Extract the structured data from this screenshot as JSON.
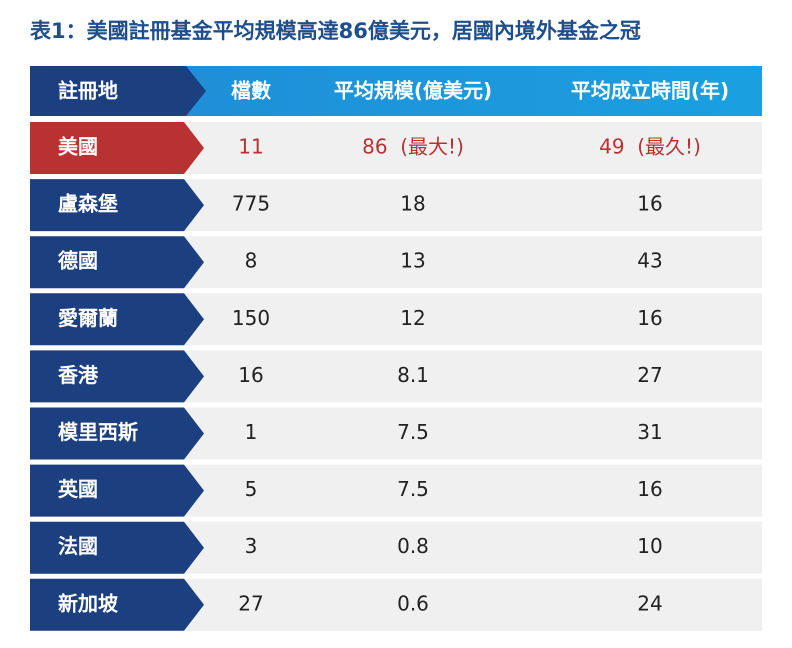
{
  "title": "表1：美國註冊基金平均規模高達86億美元，居國內境外基金之冠",
  "table": {
    "header": [
      "註冊地",
      "檔數",
      "平均規模(億美元)",
      "平均成立時間(年)"
    ],
    "rows": [
      [
        "美國",
        "11",
        "86  (最大!)",
        "49  (最久!)"
      ],
      [
        "盧森堡",
        "775",
        "18",
        "16"
      ],
      [
        "德國",
        "8",
        "13",
        "43"
      ],
      [
        "愛爾蘭",
        "150",
        "12",
        "16"
      ],
      [
        "香港",
        "16",
        "8.1",
        "27"
      ],
      [
        "模里西斯",
        "1",
        "7.5",
        "31"
      ],
      [
        "英國",
        "5",
        "7.5",
        "16"
      ],
      [
        "法國",
        "3",
        "0.8",
        "10"
      ],
      [
        "新加坡",
        "27",
        "0.6",
        "24"
      ]
    ]
  }
}
